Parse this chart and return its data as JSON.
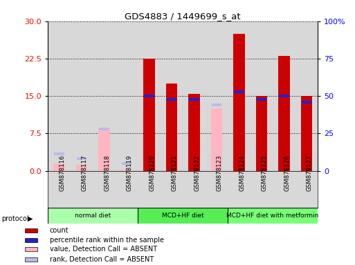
{
  "title": "GDS4883 / 1449699_s_at",
  "samples": [
    "GSM878116",
    "GSM878117",
    "GSM878118",
    "GSM878119",
    "GSM878120",
    "GSM878121",
    "GSM878122",
    "GSM878123",
    "GSM878124",
    "GSM878125",
    "GSM878126",
    "GSM878127"
  ],
  "count": [
    null,
    null,
    null,
    null,
    22.5,
    17.5,
    15.5,
    null,
    27.5,
    15.0,
    23.0,
    15.0
  ],
  "percentile_pct": [
    null,
    null,
    null,
    null,
    50.0,
    48.0,
    48.0,
    null,
    53.0,
    48.0,
    50.0,
    46.0
  ],
  "value_absent": [
    1.5,
    1.2,
    8.5,
    0.3,
    null,
    null,
    null,
    12.5,
    null,
    null,
    null,
    null
  ],
  "rank_absent_pct": [
    11.5,
    8.0,
    28.0,
    5.0,
    null,
    null,
    null,
    44.0,
    null,
    null,
    null,
    null
  ],
  "protocols": [
    {
      "label": "normal diet",
      "start": 0,
      "end": 3,
      "color": "#aaffaa"
    },
    {
      "label": "MCD+HF diet",
      "start": 4,
      "end": 7,
      "color": "#55ee55"
    },
    {
      "label": "MCD+HF diet with metformin",
      "start": 8,
      "end": 11,
      "color": "#77ff77"
    }
  ],
  "left_ylim": [
    0,
    30
  ],
  "right_ylim": [
    0,
    100
  ],
  "left_yticks": [
    0,
    7.5,
    15,
    22.5,
    30
  ],
  "right_yticks": [
    0,
    25,
    50,
    75,
    100
  ],
  "right_yticklabels": [
    "0",
    "25",
    "50",
    "75",
    "100%"
  ],
  "count_color": "#cc0000",
  "percentile_color": "#2222cc",
  "value_absent_color": "#ffb6c1",
  "rank_absent_color": "#b8bce8",
  "legend_items": [
    {
      "label": "count",
      "color": "#cc0000"
    },
    {
      "label": "percentile rank within the sample",
      "color": "#2222cc"
    },
    {
      "label": "value, Detection Call = ABSENT",
      "color": "#ffb6c1"
    },
    {
      "label": "rank, Detection Call = ABSENT",
      "color": "#b8bce8"
    }
  ]
}
